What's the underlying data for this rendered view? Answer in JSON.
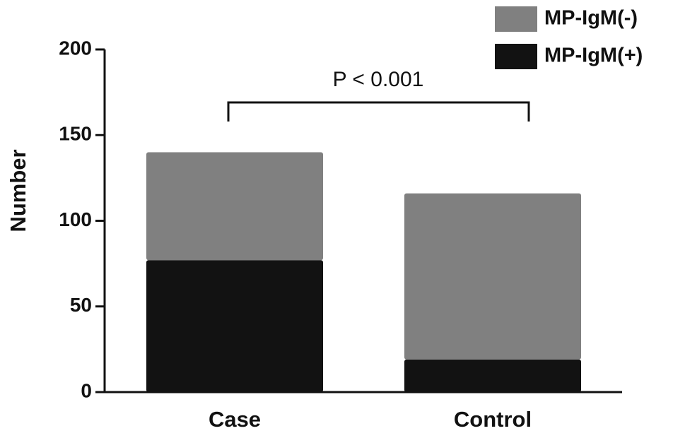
{
  "chart_data": {
    "type": "stacked_bar",
    "y_label": "Number",
    "annotation": "P < 0.001",
    "categories": [
      "Case",
      "Control"
    ],
    "series": [
      {
        "name": "MP-IgM(-)",
        "color": "#808080",
        "values": [
          63,
          97
        ]
      },
      {
        "name": "MP-IgM(+)",
        "color": "#121212",
        "values": [
          77,
          19
        ]
      }
    ],
    "ylim": [
      0,
      200
    ],
    "yticks": [
      0,
      50,
      100,
      150,
      200
    ],
    "grid": false,
    "legend": "top-right"
  }
}
